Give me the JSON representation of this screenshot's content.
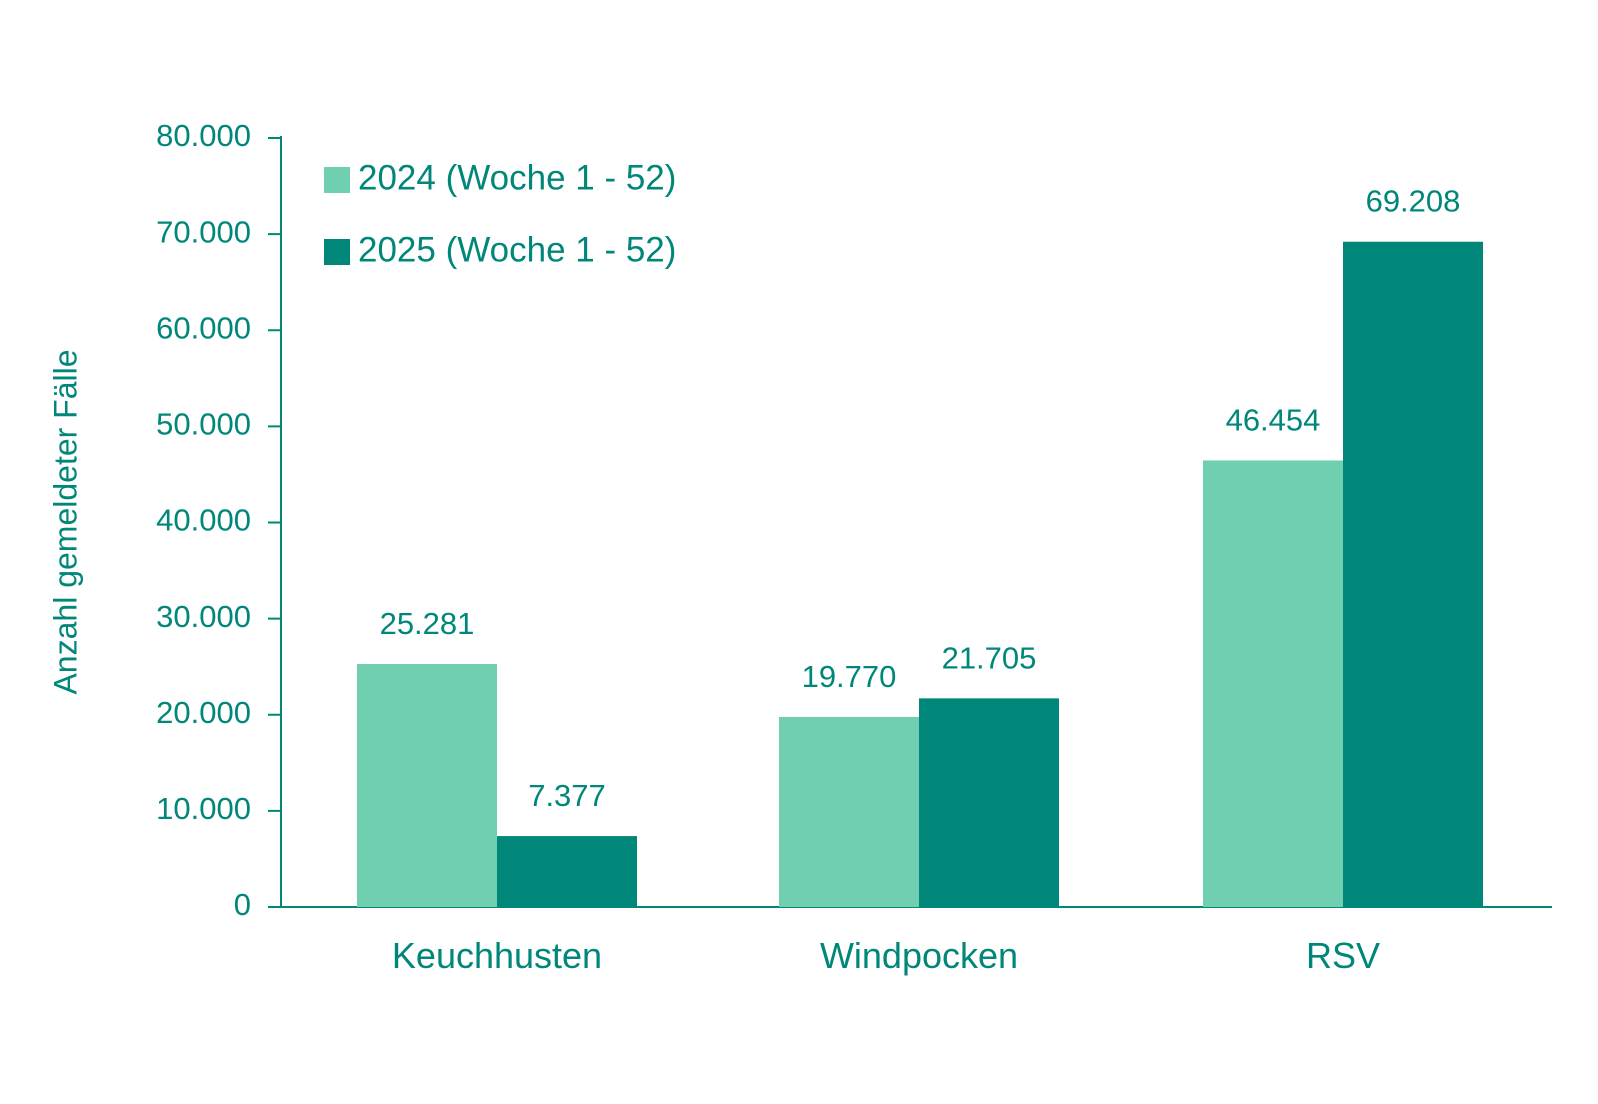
{
  "chart_data": {
    "type": "bar",
    "title": "",
    "ylabel": "Anzahl gemeldeter Fälle",
    "xlabel": "",
    "categories": [
      "Keuchhusten",
      "Windpocken",
      "RSV"
    ],
    "series": [
      {
        "name": "2024 (Woche 1 - 52)",
        "values": [
          25281,
          19770,
          46454
        ],
        "labels": [
          "25.281",
          "19.770",
          "46.454"
        ],
        "color": "#70cfb1"
      },
      {
        "name": "2025 (Woche 1 - 52)",
        "values": [
          7377,
          21705,
          69208
        ],
        "labels": [
          "7.377",
          "21.705",
          "69.208"
        ],
        "color": "#00877a"
      }
    ],
    "ylim": [
      0,
      80000
    ],
    "yticks": [
      0,
      10000,
      20000,
      30000,
      40000,
      50000,
      60000,
      70000,
      80000
    ],
    "ytick_labels": [
      "0",
      "10.000",
      "20.000",
      "30.000",
      "40.000",
      "50.000",
      "60.000",
      "70.000",
      "80.000"
    ],
    "grid": false,
    "legend_position": "top-left",
    "text_color": "#00877a",
    "axis_color": "#00877a"
  }
}
